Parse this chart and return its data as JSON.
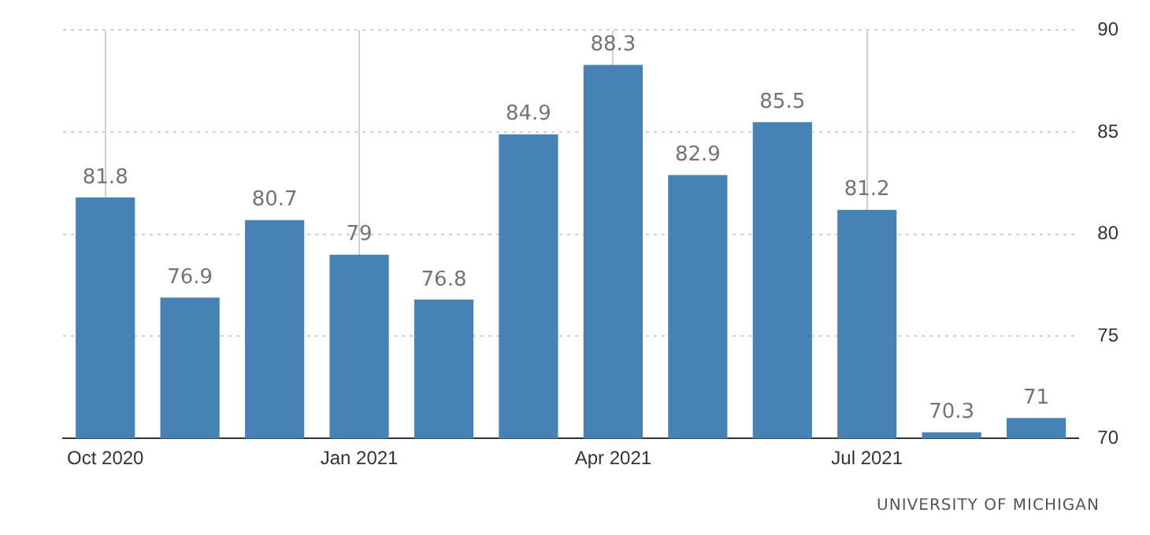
{
  "chart_data": {
    "type": "bar",
    "categories": [
      "Oct 2020",
      null,
      null,
      "Jan 2021",
      null,
      null,
      "Apr 2021",
      null,
      null,
      "Jul 2021",
      null,
      null
    ],
    "values": [
      81.8,
      76.9,
      80.7,
      79,
      76.8,
      84.9,
      88.3,
      82.9,
      85.5,
      81.2,
      70.3,
      71
    ],
    "color": "#4682b4",
    "ylim": [
      70,
      90
    ],
    "yticks": [
      70,
      75,
      80,
      85,
      90
    ],
    "grid": true,
    "data_labels": true,
    "annotations": [
      "UNIVERSITY OF MICHIGAN"
    ]
  }
}
